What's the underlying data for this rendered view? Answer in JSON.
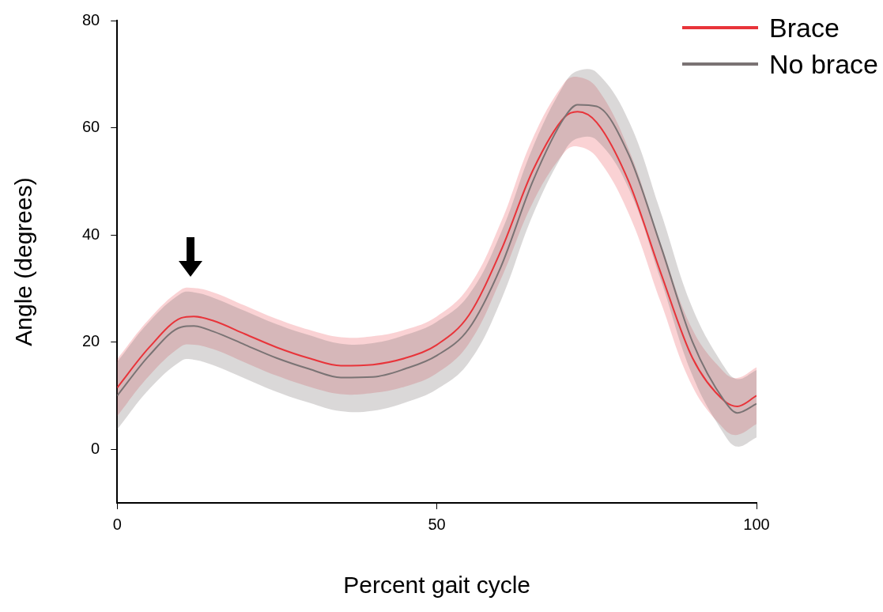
{
  "chart_data": {
    "type": "line",
    "xlabel": "Percent gait cycle",
    "ylabel": "Angle (degrees)",
    "xlim": [
      0,
      100
    ],
    "xticks": [
      0,
      50,
      100
    ],
    "ylim": [
      -10,
      80
    ],
    "yticks": [
      0,
      20,
      40,
      60,
      80
    ],
    "grid": false,
    "legend": "top right",
    "marker": "none",
    "line_style": "solid",
    "series": [
      {
        "name": "Brace",
        "color": "#e8343a",
        "x": [
          0,
          5,
          10,
          12,
          15,
          20,
          25,
          30,
          35,
          40,
          45,
          50,
          55,
          60,
          65,
          70,
          72,
          75,
          80,
          85,
          90,
          95,
          97,
          100
        ],
        "values": [
          11.5,
          19,
          24.5,
          24.8,
          24,
          21.5,
          19,
          17,
          15.6,
          15.8,
          17,
          19.5,
          25,
          37,
          52,
          62,
          63,
          61,
          50,
          33,
          17,
          9,
          8,
          10
        ],
        "lower": [
          6.2,
          13.7,
          19.2,
          19.5,
          18.7,
          16.2,
          13.7,
          11.7,
          10.3,
          10.5,
          11.7,
          14.2,
          19.7,
          31.7,
          46,
          55.5,
          56.5,
          54.5,
          44,
          27.5,
          11.7,
          3.7,
          2.7,
          4.7
        ],
        "upper": [
          16.8,
          24.3,
          29.8,
          30.1,
          29.3,
          26.8,
          24.3,
          22.3,
          20.9,
          21.1,
          22.3,
          24.8,
          30.3,
          42.3,
          58,
          68.5,
          69.5,
          67.5,
          56,
          38.5,
          22.3,
          14.3,
          13.3,
          15.3
        ]
      },
      {
        "name": "No brace",
        "color": "#7a7374",
        "x": [
          0,
          5,
          10,
          12,
          15,
          20,
          25,
          30,
          35,
          40,
          45,
          50,
          55,
          60,
          65,
          70,
          72,
          75,
          80,
          85,
          90,
          95,
          97,
          100
        ],
        "values": [
          10,
          17.5,
          22.8,
          23,
          22,
          19.5,
          17,
          15,
          13.4,
          13.5,
          15,
          17.5,
          22.5,
          34,
          50,
          62,
          64.3,
          64,
          55,
          38,
          20,
          9,
          6.8,
          8.5
        ],
        "lower": [
          3.7,
          11.2,
          16.5,
          16.7,
          15.7,
          13.2,
          10.7,
          8.7,
          7.1,
          7.2,
          8.7,
          11.2,
          16.2,
          27.7,
          43.7,
          55.7,
          58,
          57.7,
          48.7,
          31.7,
          13.7,
          2.7,
          0.5,
          2.2
        ],
        "upper": [
          16.3,
          23.8,
          29.1,
          29.3,
          28.3,
          25.8,
          23.3,
          21.3,
          19.7,
          19.8,
          21.3,
          23.8,
          28.8,
          40.3,
          56.3,
          68.3,
          70.6,
          70.3,
          61.3,
          44.3,
          26.3,
          15.3,
          13.1,
          14.8
        ]
      }
    ]
  }
}
